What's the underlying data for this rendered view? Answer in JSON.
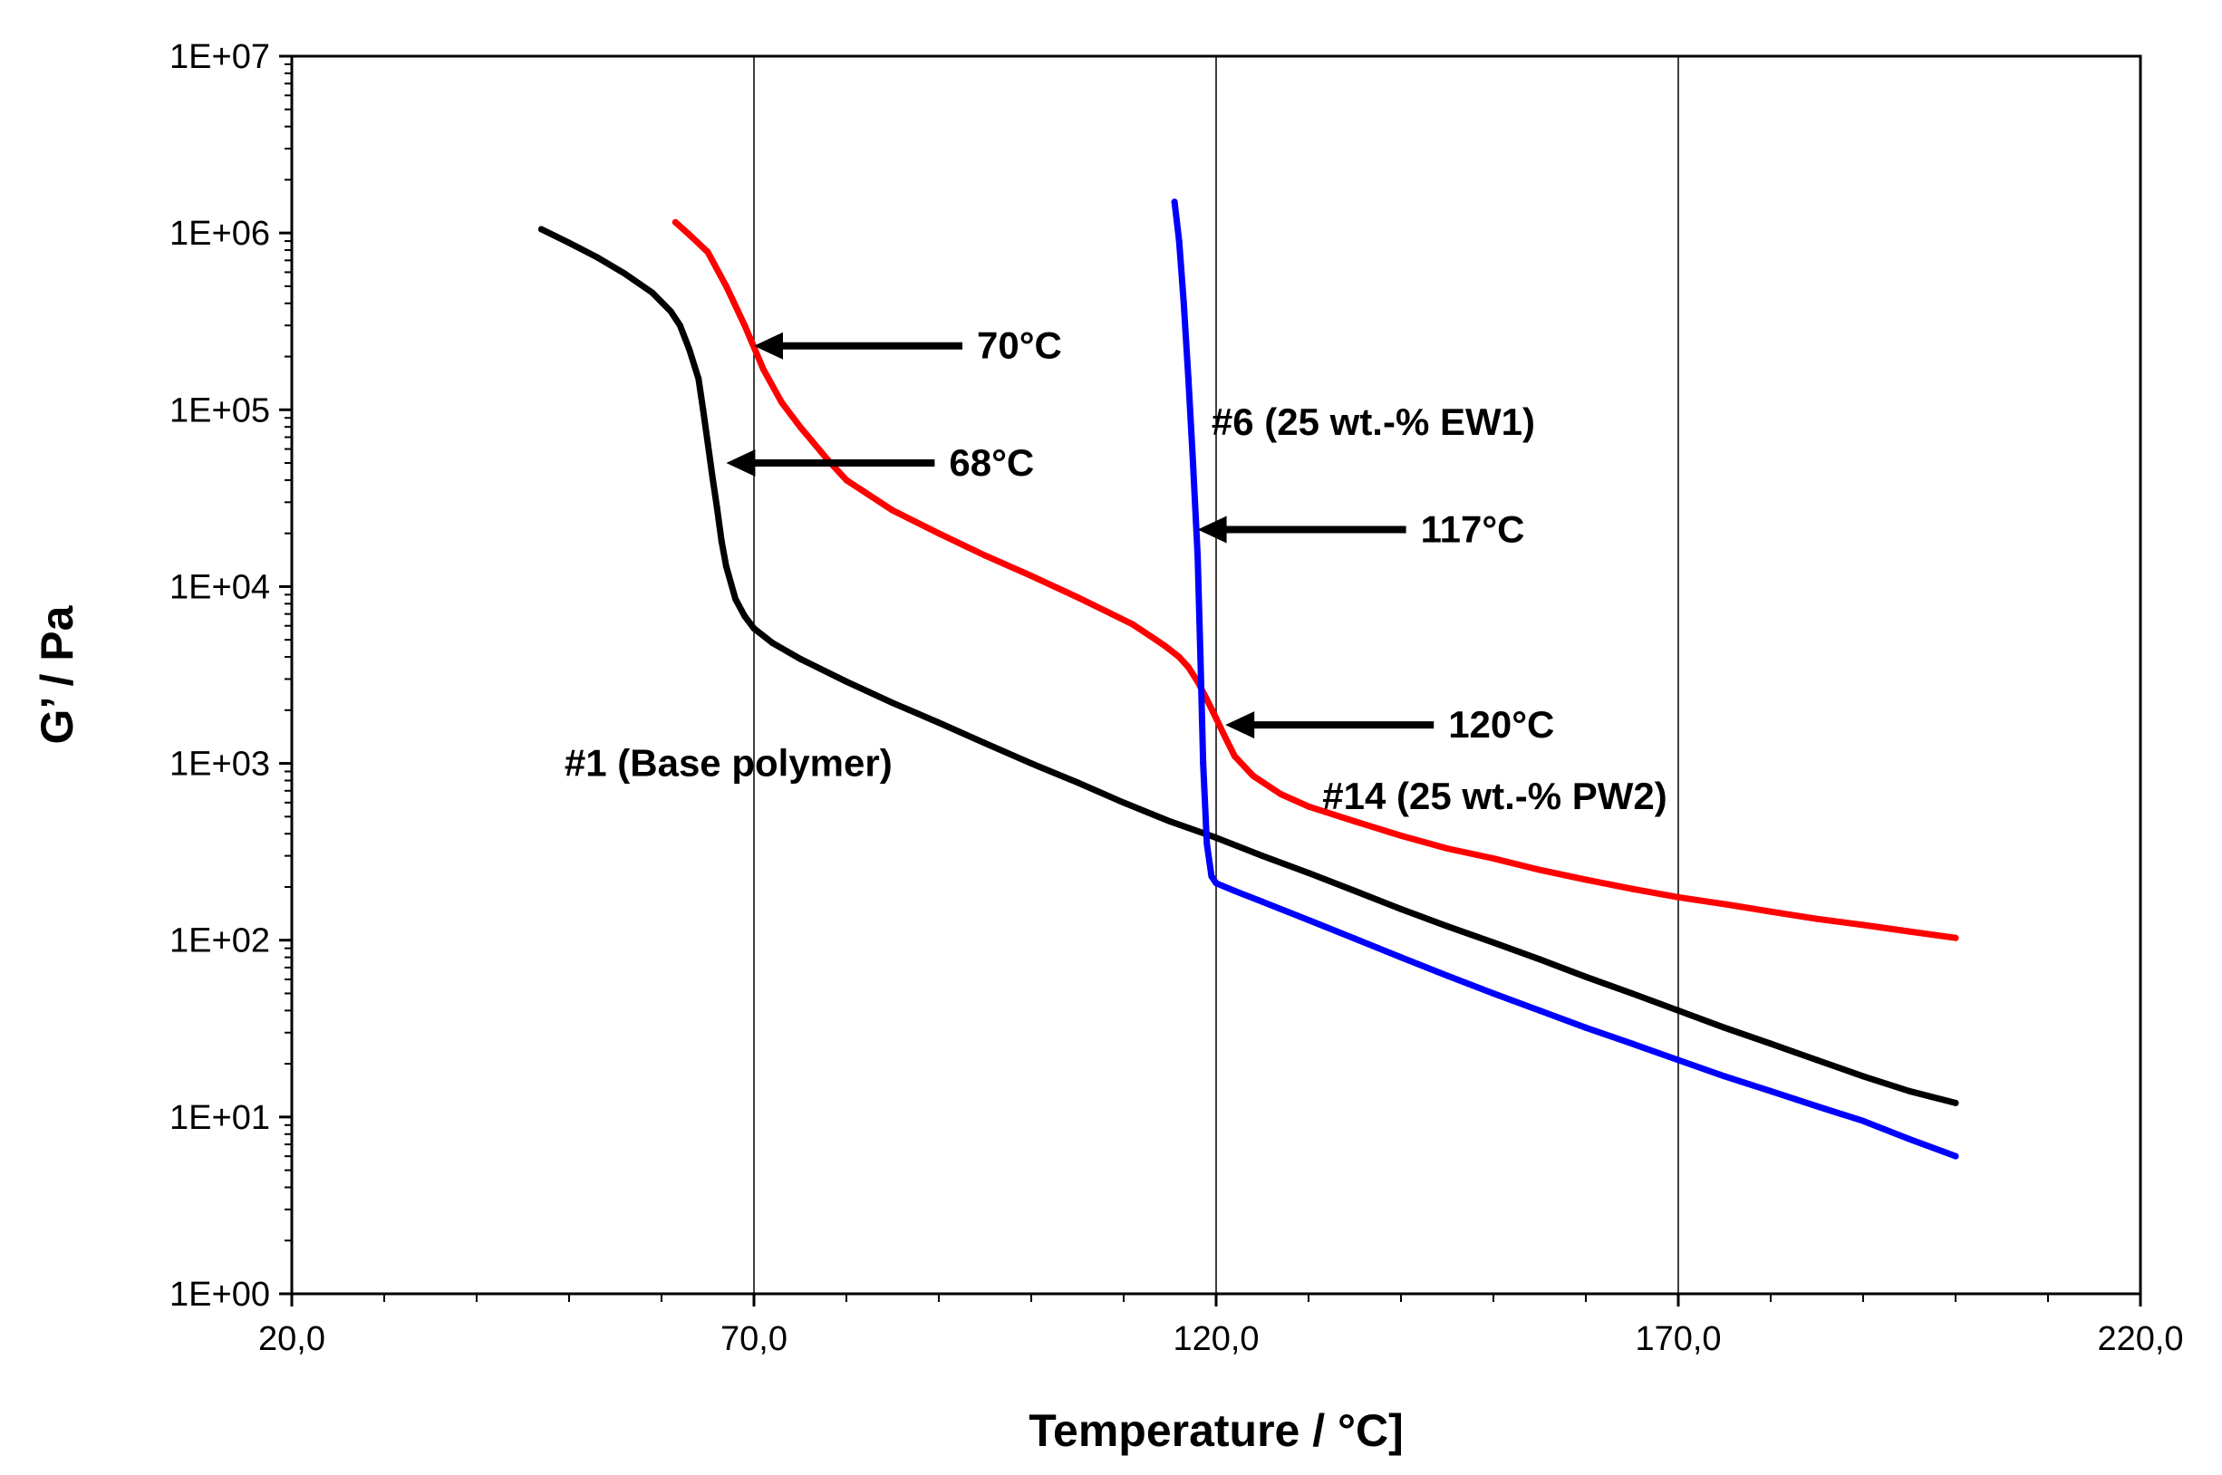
{
  "chart_data": {
    "type": "line",
    "title": "",
    "xlabel": "Temperature / °C]",
    "ylabel": "G’ / Pa",
    "x_scale": "linear",
    "y_scale": "log",
    "xlim": [
      20,
      220
    ],
    "ylim_exponent": [
      0,
      7
    ],
    "x_ticks": [
      {
        "value": 20,
        "label": "20,0"
      },
      {
        "value": 70,
        "label": "70,0"
      },
      {
        "value": 120,
        "label": "120,0"
      },
      {
        "value": 170,
        "label": "170,0"
      },
      {
        "value": 220,
        "label": "220,0"
      }
    ],
    "y_ticks": [
      {
        "exp": 0,
        "label": "1E+00"
      },
      {
        "exp": 1,
        "label": "1E+01"
      },
      {
        "exp": 2,
        "label": "1E+02"
      },
      {
        "exp": 3,
        "label": "1E+03"
      },
      {
        "exp": 4,
        "label": "1E+04"
      },
      {
        "exp": 5,
        "label": "1E+05"
      },
      {
        "exp": 6,
        "label": "1E+06"
      },
      {
        "exp": 7,
        "label": "1E+07"
      }
    ],
    "x_minor_step": 10,
    "x_gridlines": [
      70,
      120,
      170
    ],
    "legend": "none",
    "series": [
      {
        "name": "#1 (Base polymer)",
        "color": "#000000",
        "x": [
          47,
          50,
          53,
          56,
          59,
          61,
          62,
          63,
          64,
          64.5,
          65,
          65.5,
          66,
          66.5,
          67,
          68,
          69,
          70,
          72,
          75,
          80,
          85,
          90,
          95,
          100,
          105,
          110,
          115,
          120,
          125,
          130,
          135,
          140,
          145,
          150,
          155,
          160,
          165,
          170,
          175,
          180,
          185,
          190,
          195,
          200
        ],
        "y": [
          1050000,
          880000,
          730000,
          590000,
          460000,
          360000,
          300000,
          220000,
          150000,
          100000,
          65000,
          42000,
          28000,
          18000,
          13000,
          8500,
          6800,
          5800,
          4800,
          3900,
          2900,
          2200,
          1700,
          1300,
          1000,
          780,
          600,
          470,
          380,
          300,
          240,
          190,
          150,
          120,
          97,
          78,
          62,
          50,
          40,
          32,
          26,
          21,
          17,
          14,
          12
        ]
      },
      {
        "name": "#14 (25 wt.-% PW2)",
        "color": "#ff0000",
        "x": [
          61.5,
          63,
          65,
          67,
          69,
          71,
          73,
          75,
          78,
          80,
          85,
          90,
          95,
          100,
          105,
          108,
          111,
          113,
          114.5,
          116,
          117,
          118,
          119,
          120,
          121,
          122,
          124,
          127,
          130,
          135,
          140,
          145,
          150,
          155,
          160,
          165,
          170,
          175,
          180,
          185,
          190,
          195,
          200
        ],
        "y": [
          1150000,
          980000,
          780000,
          500000,
          300000,
          170000,
          110000,
          80000,
          52000,
          40000,
          27000,
          20000,
          15000,
          11500,
          8700,
          7300,
          6100,
          5200,
          4600,
          4000,
          3500,
          2900,
          2300,
          1800,
          1400,
          1100,
          850,
          670,
          570,
          470,
          390,
          330,
          290,
          250,
          220,
          195,
          175,
          160,
          145,
          132,
          122,
          112,
          103
        ]
      },
      {
        "name": "#6 (25 wt.-% EW1)",
        "color": "#0000ff",
        "x": [
          115.5,
          116,
          116.5,
          117,
          117.5,
          118,
          118.3,
          118.6,
          119,
          119.5,
          120,
          122,
          125,
          130,
          135,
          140,
          145,
          150,
          155,
          160,
          165,
          170,
          175,
          180,
          185,
          190,
          195,
          200
        ],
        "y": [
          1500000,
          900000,
          400000,
          150000,
          50000,
          15000,
          4000,
          1000,
          350,
          230,
          210,
          190,
          165,
          130,
          102,
          80,
          63,
          50,
          40,
          32,
          26,
          21,
          17,
          14,
          11.5,
          9.5,
          7.5,
          6
        ]
      }
    ],
    "annotations": [
      {
        "text": "70°C",
        "tip_x": 70,
        "tip_y": 230000
      },
      {
        "text": "68°C",
        "tip_x": 67,
        "tip_y": 50000
      },
      {
        "text": "117°C",
        "tip_x": 118,
        "tip_y": 21000
      },
      {
        "text": "120°C",
        "tip_x": 121,
        "tip_y": 1650
      }
    ],
    "series_labels": [
      {
        "text": "#1 (Base polymer)",
        "x": 49.5,
        "y": 1000
      },
      {
        "text": "#6 (25 wt.-%  EW1)",
        "x": 119.5,
        "y": 85000
      },
      {
        "text": "#14 (25 wt.-%  PW2)",
        "x": 131.5,
        "y": 650
      }
    ]
  }
}
